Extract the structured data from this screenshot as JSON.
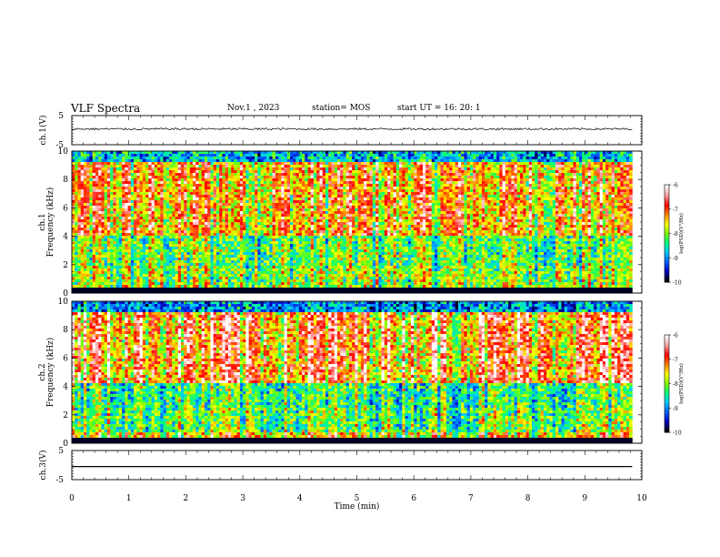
{
  "header": {
    "title": "VLF Spectra",
    "date": "Nov.1 , 2023",
    "station": "station= MOS",
    "start_ut": "start UT = 16: 20: 1"
  },
  "chart_data": [
    {
      "type": "line",
      "panel": "ch1-waveform",
      "ylabel": "ch.1(V)",
      "ylim": [
        -5,
        5
      ],
      "y_ticks": [
        "5",
        "-5"
      ],
      "x_range_min": [
        0,
        9.83
      ],
      "level_v": 0.4,
      "noise_amplitude_v": 0.35
    },
    {
      "type": "heatmap",
      "panel": "ch1-spectrogram",
      "ylabel": "Frequency (kHz)",
      "channel_label": "ch.1",
      "ylim": [
        0,
        10
      ],
      "y_ticks": [
        "0",
        "2",
        "4",
        "6",
        "8",
        "10"
      ],
      "colorbar": {
        "label": "log(PSD)(V²/Hz)",
        "range": [
          -10,
          -6
        ],
        "ticks": [
          "-6",
          "-7",
          "-8",
          "-9",
          "-10"
        ],
        "colors": [
          "#000000",
          "#0000c0",
          "#0060ff",
          "#00c8ff",
          "#00ff80",
          "#80ff00",
          "#ffff00",
          "#ff8000",
          "#ff0000",
          "#ffa0a0",
          "#ffffff"
        ]
      },
      "description": "Broadband impulsive emissions 0.3-10 kHz, strong power at 4-9 kHz, gap below ~0.3 kHz"
    },
    {
      "type": "heatmap",
      "panel": "ch2-spectrogram",
      "ylabel": "Frequency (kHz)",
      "channel_label": "ch.2",
      "ylim": [
        0,
        10
      ],
      "y_ticks": [
        "0",
        "2",
        "4",
        "6",
        "8",
        "10"
      ],
      "colorbar": {
        "label": "log(PSD)(V²/Hz)",
        "range": [
          -10,
          -6
        ],
        "ticks": [
          "-6",
          "-7",
          "-8",
          "-9",
          "-10"
        ]
      },
      "description": "Strong band 4-9 kHz (red), green/blue below ~4 kHz and above ~9 kHz"
    },
    {
      "type": "line",
      "panel": "ch3-waveform",
      "ylabel": "ch.3(V)",
      "ylim": [
        -5,
        5
      ],
      "y_ticks": [
        "5",
        "-5"
      ],
      "level_v": -0.5,
      "x_range_min": [
        0,
        9.83
      ]
    }
  ],
  "x_axis": {
    "label": "Time (min)",
    "range": [
      0,
      10
    ],
    "ticks": [
      "0",
      "1",
      "2",
      "3",
      "4",
      "5",
      "6",
      "7",
      "8",
      "9",
      "10"
    ]
  }
}
